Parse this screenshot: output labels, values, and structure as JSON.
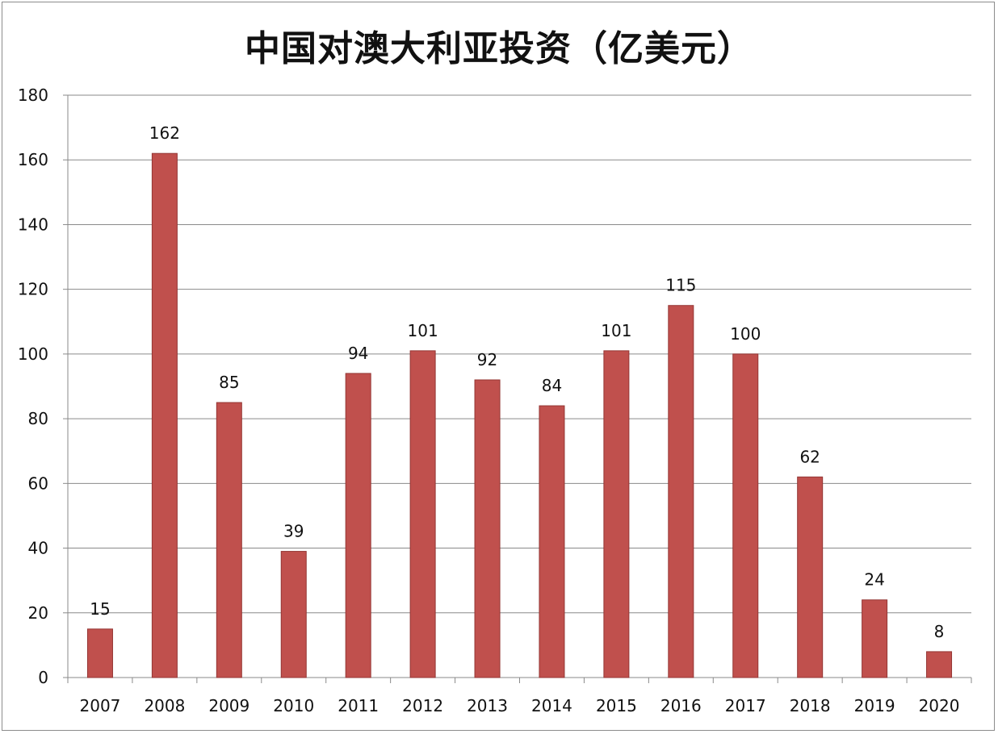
{
  "chart_data": {
    "type": "bar",
    "title": "中国对澳大利亚投资（亿美元）",
    "xlabel": "",
    "ylabel": "",
    "categories": [
      "2007",
      "2008",
      "2009",
      "2010",
      "2011",
      "2012",
      "2013",
      "2014",
      "2015",
      "2016",
      "2017",
      "2018",
      "2019",
      "2020"
    ],
    "values": [
      15,
      162,
      85,
      39,
      94,
      101,
      92,
      84,
      101,
      115,
      100,
      62,
      24,
      8
    ],
    "data_labels": [
      "15",
      "162",
      "85",
      "39",
      "94",
      "101",
      "92",
      "84",
      "101",
      "115",
      "100",
      "62",
      "24",
      "8"
    ],
    "ylim": [
      0,
      180
    ],
    "yticks": [
      0,
      20,
      40,
      60,
      80,
      100,
      120,
      140,
      160,
      180
    ],
    "ytick_labels": [
      "0",
      "20",
      "40",
      "60",
      "80",
      "100",
      "120",
      "140",
      "160",
      "180"
    ],
    "grid": true,
    "legend": "none",
    "bar_color": "#c0504d",
    "bar_edge_color": "#943634"
  }
}
